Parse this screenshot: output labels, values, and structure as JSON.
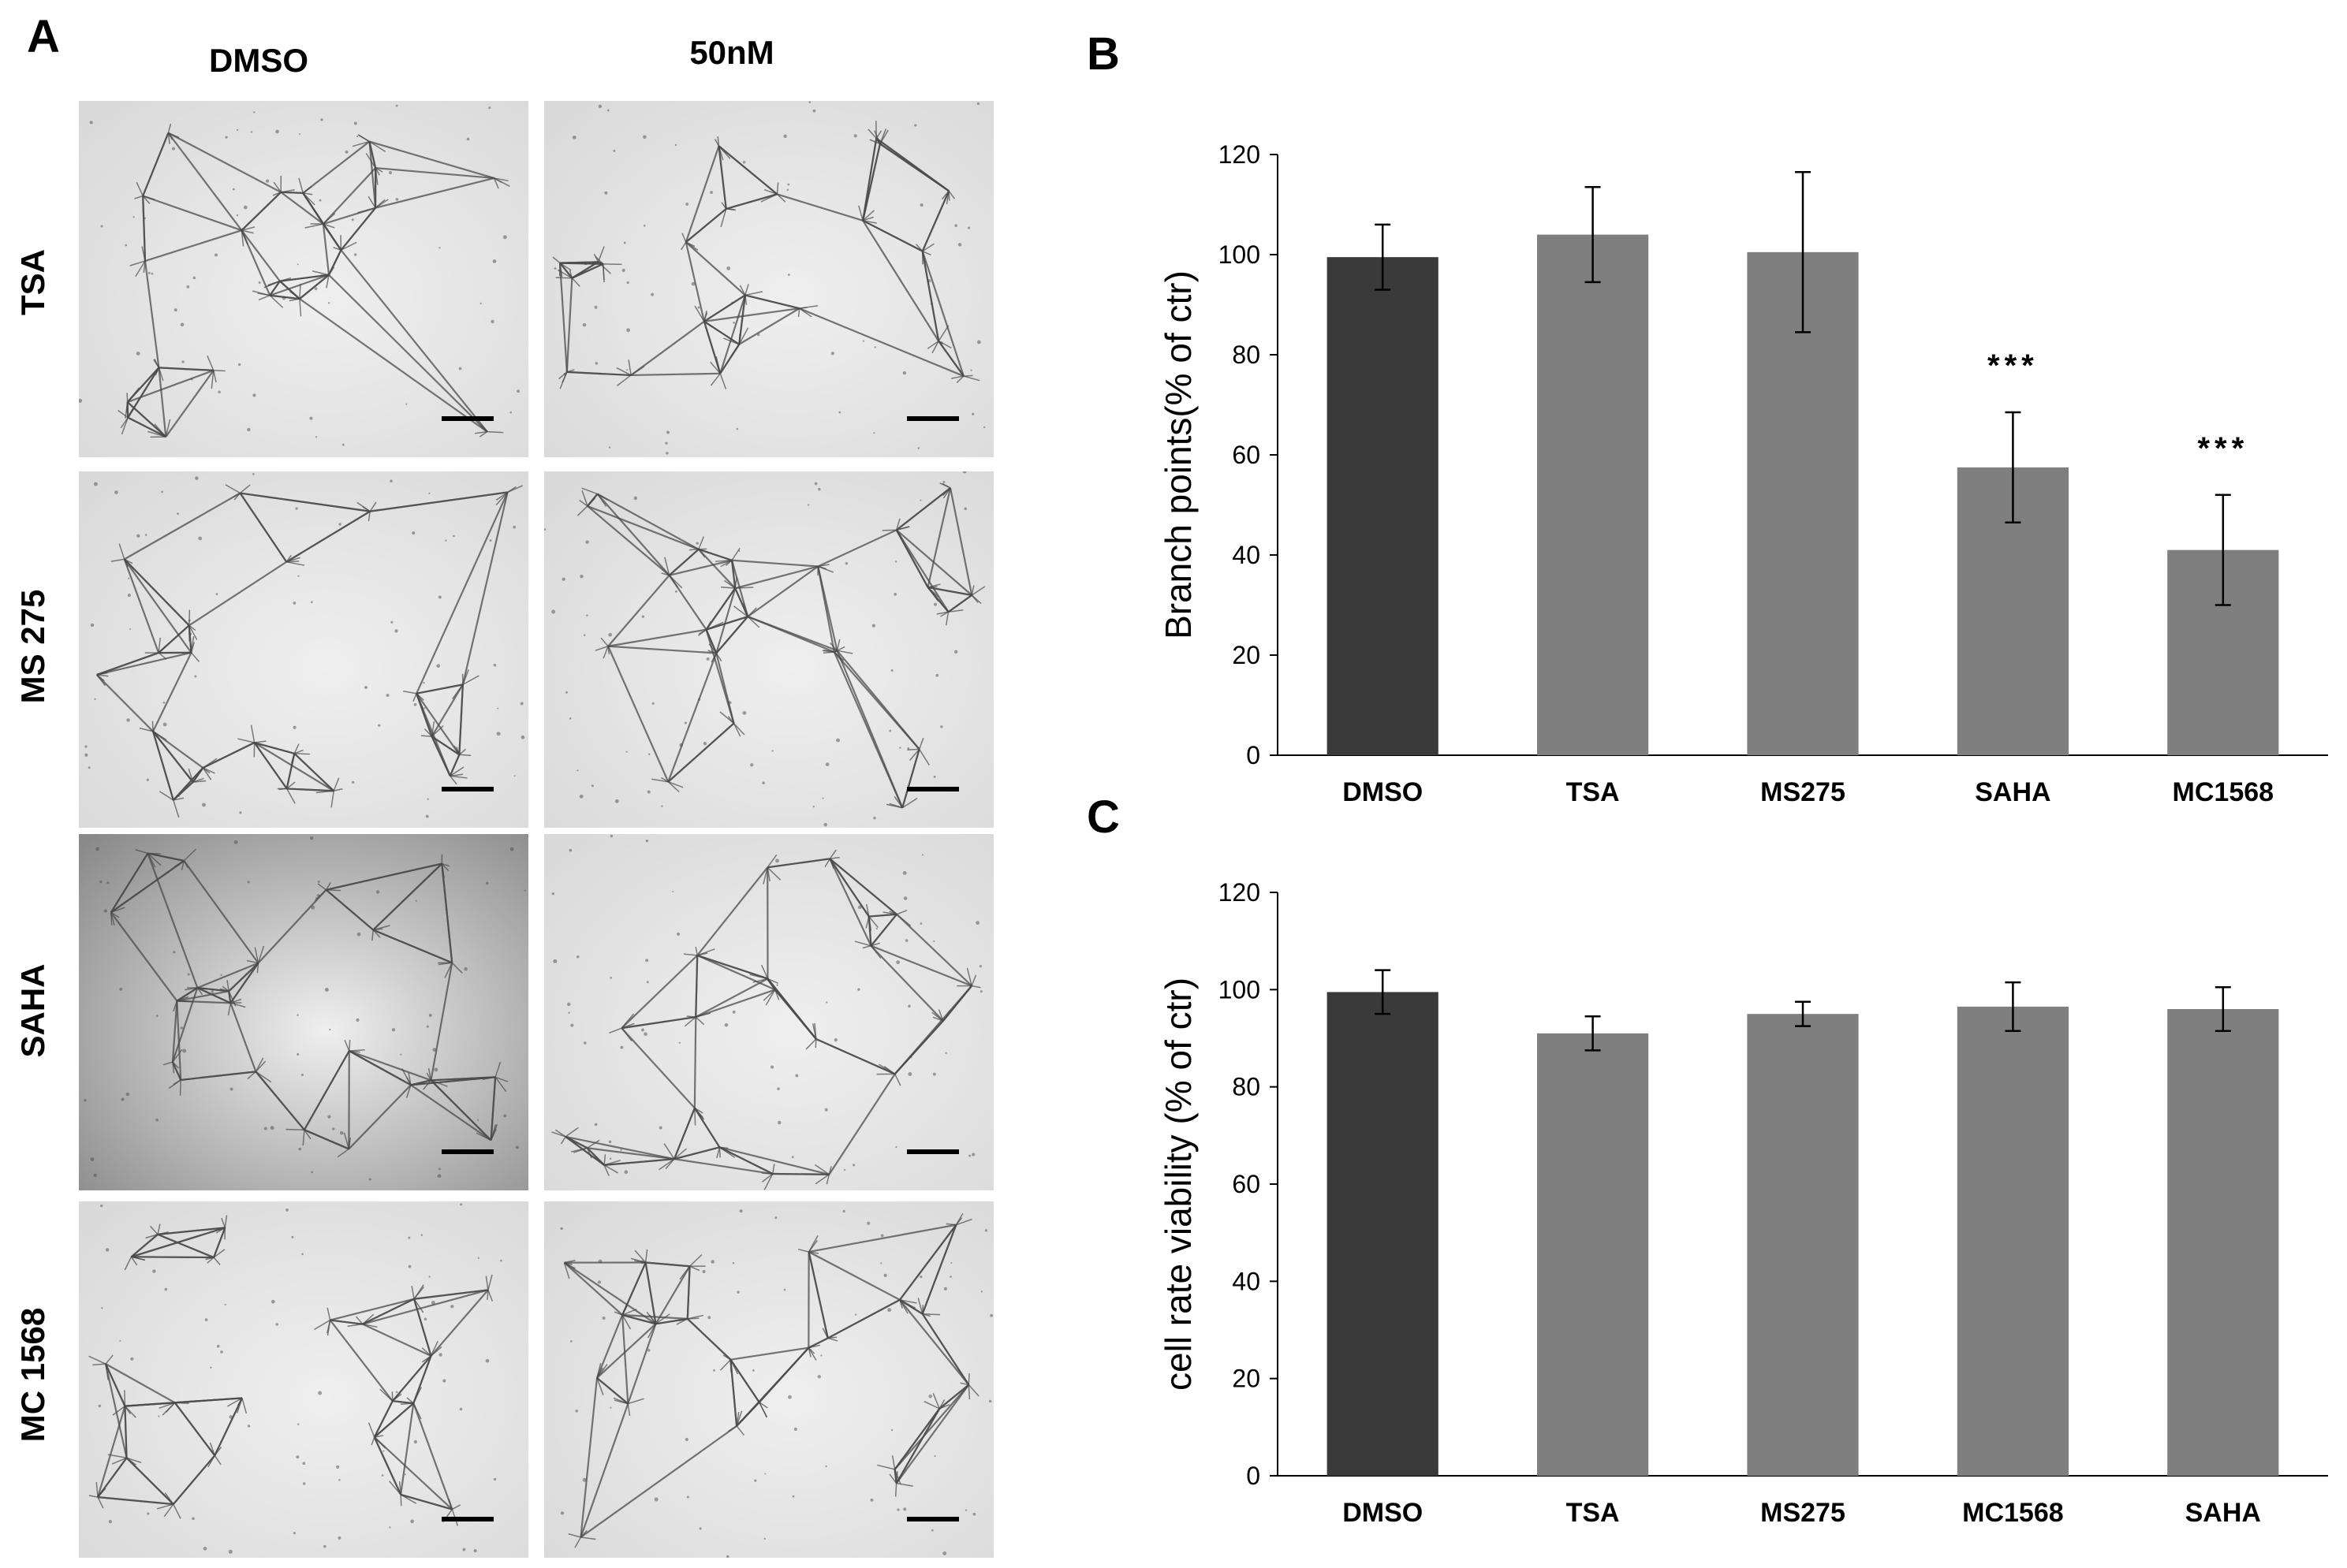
{
  "panels": {
    "a": "A",
    "b": "B",
    "c": "C"
  },
  "micrographs": {
    "columns": [
      "DMSO",
      "50nM"
    ],
    "rows": [
      "TSA",
      "MS 275",
      "SAHA",
      "MC 1568"
    ]
  },
  "colors": {
    "dmso_bar": "#3a3a3a",
    "treatment_bar": "#7f7f7f",
    "axis": "#000000",
    "micrograph_bg": "#d9d9d9",
    "micrograph_network": "#4a4a4a"
  },
  "chart_data": [
    {
      "type": "bar",
      "panel": "B",
      "categories": [
        "DMSO",
        "TSA",
        "MS275",
        "SAHA",
        "MC1568"
      ],
      "values": [
        99.5,
        104,
        100.5,
        57.5,
        41
      ],
      "errors": [
        6.5,
        9.5,
        16,
        11,
        11
      ],
      "annotations": [
        "",
        "",
        "",
        "***",
        "***"
      ],
      "title": "",
      "xlabel": "",
      "ylabel": "Branch points(% of ctr)",
      "ylim": [
        0,
        120
      ],
      "yticks": [
        0,
        20,
        40,
        60,
        80,
        100,
        120
      ],
      "grid": false,
      "legend": false
    },
    {
      "type": "bar",
      "panel": "C",
      "categories": [
        "DMSO",
        "TSA",
        "MS275",
        "MC1568",
        "SAHA"
      ],
      "values": [
        99.5,
        91,
        95,
        96.5,
        96
      ],
      "errors": [
        4.5,
        3.5,
        2.5,
        5,
        4.5
      ],
      "annotations": [
        "",
        "",
        "",
        "",
        ""
      ],
      "title": "",
      "xlabel": "",
      "ylabel": "cell rate viability (% of ctr)",
      "ylim": [
        0,
        120
      ],
      "yticks": [
        0,
        20,
        40,
        60,
        80,
        100,
        120
      ],
      "grid": false,
      "legend": false
    }
  ]
}
